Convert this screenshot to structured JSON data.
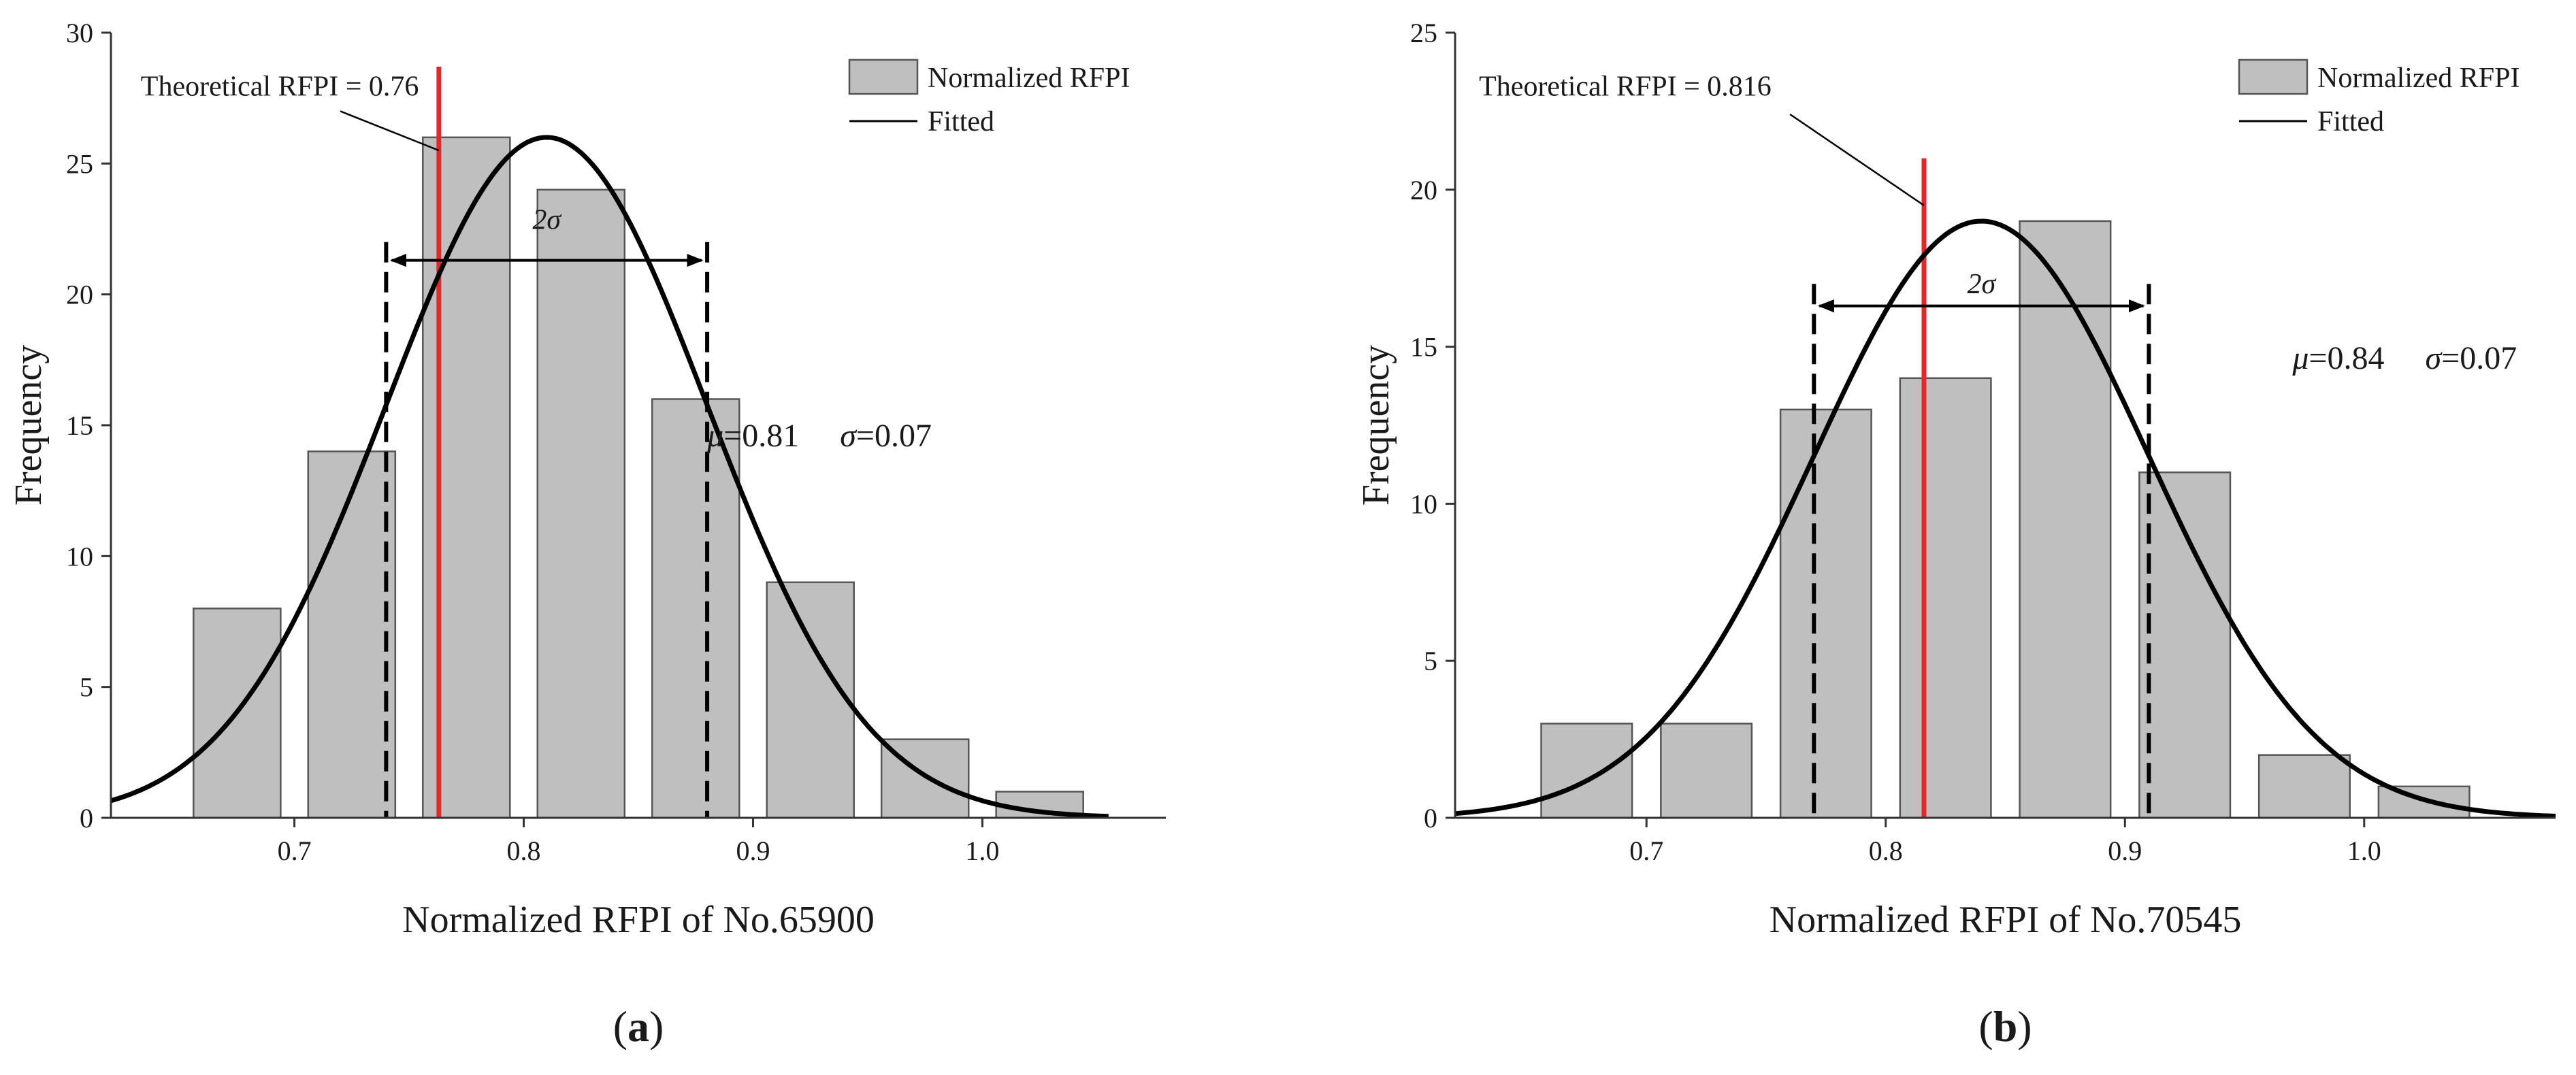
{
  "colors": {
    "bar_fill": "#bfbfbf",
    "bar_stroke": "#555555",
    "fit_line": "#000000",
    "theory_line": "#e8262a",
    "dashed_line": "#000000"
  },
  "chart_data": [
    {
      "type": "bar",
      "panel_label": "(a)",
      "xlabel": "Normalized RFPI of No.65900",
      "ylabel": "Frequency",
      "xlim": [
        0.62,
        1.08
      ],
      "ylim": [
        0,
        30
      ],
      "xticks": [
        0.7,
        0.8,
        0.9,
        1.0
      ],
      "yticks": [
        0,
        5,
        10,
        15,
        20,
        25,
        30
      ],
      "bars": [
        {
          "center": 0.675,
          "value": 8
        },
        {
          "center": 0.725,
          "value": 14
        },
        {
          "center": 0.775,
          "value": 26
        },
        {
          "center": 0.825,
          "value": 24
        },
        {
          "center": 0.875,
          "value": 16
        },
        {
          "center": 0.925,
          "value": 9
        },
        {
          "center": 0.975,
          "value": 3
        },
        {
          "center": 1.025,
          "value": 1
        }
      ],
      "bar_width": 0.038,
      "fit": {
        "mu": 0.81,
        "sigma": 0.07,
        "peak": 26
      },
      "fit_x_range": [
        0.62,
        1.055
      ],
      "theoretical": {
        "x": 0.763,
        "y_top": 28.7,
        "label": "Theoretical RFPI = 0.76",
        "label_x": 0.633,
        "label_y": 27.6,
        "leader_from": [
          0.72,
          27.0
        ],
        "leader_to": [
          0.763,
          25.5
        ]
      },
      "sigma_span": {
        "x1": 0.74,
        "x2": 0.88,
        "y": 21.3,
        "y_top": 22.0,
        "y_bottom": 0,
        "label": "2σ",
        "label_y": 22.5
      },
      "stats": {
        "mu_label": "μ",
        "mu_value": "=0.81",
        "sigma_label": "σ",
        "sigma_value": "=0.07",
        "x": 0.88,
        "y": 14.2
      },
      "legend": {
        "position": "top-right",
        "bar_label": "Normalized RFPI",
        "line_label": "Fitted"
      }
    },
    {
      "type": "bar",
      "panel_label": "(b)",
      "xlabel": "Normalized RFPI of No.70545",
      "ylabel": "Frequency",
      "xlim": [
        0.62,
        1.08
      ],
      "ylim": [
        0,
        25
      ],
      "xticks": [
        0.7,
        0.8,
        0.9,
        1.0
      ],
      "yticks": [
        0,
        5,
        10,
        15,
        20,
        25
      ],
      "bars": [
        {
          "center": 0.675,
          "value": 3
        },
        {
          "center": 0.725,
          "value": 3
        },
        {
          "center": 0.775,
          "value": 13
        },
        {
          "center": 0.825,
          "value": 14
        },
        {
          "center": 0.875,
          "value": 19
        },
        {
          "center": 0.925,
          "value": 11
        },
        {
          "center": 0.975,
          "value": 2
        },
        {
          "center": 1.025,
          "value": 1
        }
      ],
      "bar_width": 0.038,
      "fit": {
        "mu": 0.84,
        "sigma": 0.07,
        "peak": 19
      },
      "fit_x_range": [
        0.62,
        1.08
      ],
      "theoretical": {
        "x": 0.816,
        "y_top": 21.0,
        "label": "Theoretical RFPI = 0.816",
        "label_x": 0.63,
        "label_y": 23.0,
        "leader_from": [
          0.76,
          22.4
        ],
        "leader_to": [
          0.816,
          19.5
        ]
      },
      "sigma_span": {
        "x1": 0.77,
        "x2": 0.91,
        "y": 16.3,
        "y_top": 17.0,
        "y_bottom": 0,
        "label": "2σ",
        "label_y": 16.7
      },
      "stats": {
        "mu_label": "μ",
        "mu_value": "=0.84",
        "sigma_label": "σ",
        "sigma_value": "=0.07",
        "x": 0.97,
        "y": 14.3
      },
      "legend": {
        "position": "top-right",
        "bar_label": "Normalized RFPI",
        "line_label": "Fitted"
      }
    }
  ]
}
